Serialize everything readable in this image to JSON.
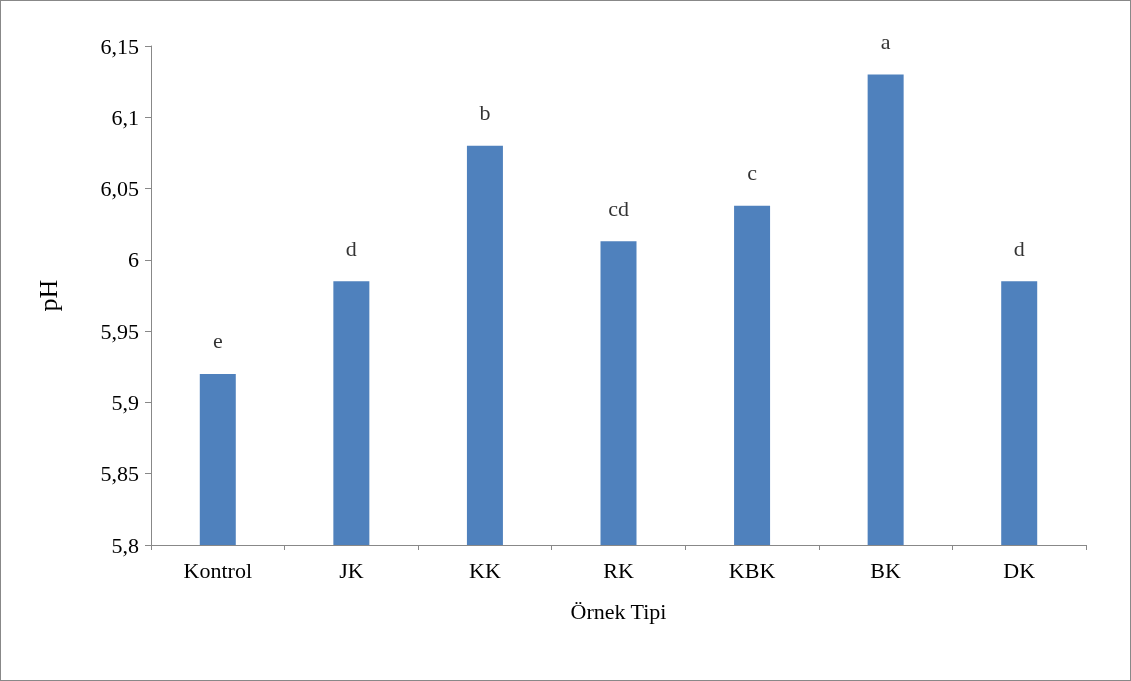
{
  "chart_data": {
    "type": "bar",
    "xlabel": "Örnek Tipi",
    "ylabel": "pH",
    "categories": [
      "Kontrol",
      "JK",
      "KK",
      "RK",
      "KBK",
      "BK",
      "DK"
    ],
    "values": [
      5.92,
      5.985,
      6.08,
      6.013,
      6.038,
      6.13,
      5.985
    ],
    "color": "#4f81bd",
    "ylim": [
      5.8,
      6.15
    ],
    "yticks": [
      {
        "value": 5.8,
        "label": "5,8"
      },
      {
        "value": 5.85,
        "label": "5,85"
      },
      {
        "value": 5.9,
        "label": "5,9"
      },
      {
        "value": 5.95,
        "label": "5,95"
      },
      {
        "value": 6,
        "label": "6"
      },
      {
        "value": 6.05,
        "label": "6,05"
      },
      {
        "value": 6.1,
        "label": "6,1"
      },
      {
        "value": 6.15,
        "label": "6,15"
      }
    ],
    "annotations": [
      {
        "text": "e",
        "x": "Kontrol",
        "y": 5.92
      },
      {
        "text": "d",
        "x": "JK",
        "y": 5.985
      },
      {
        "text": "b",
        "x": "KK",
        "y": 6.08
      },
      {
        "text": "cd",
        "x": "RK",
        "y": 6.013
      },
      {
        "text": "c",
        "x": "KBK",
        "y": 6.038
      },
      {
        "text": "a",
        "x": "BK",
        "y": 6.13
      },
      {
        "text": "d",
        "x": "DK",
        "y": 5.985
      }
    ]
  }
}
